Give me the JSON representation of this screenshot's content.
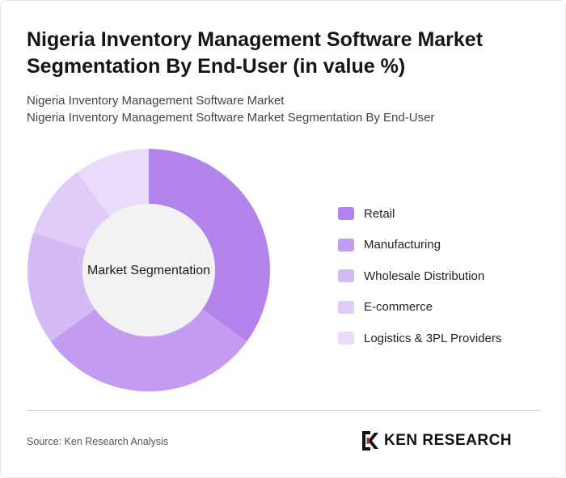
{
  "header": {
    "title": "Nigeria Inventory Management Software Market Segmentation By End-User (in value %)",
    "subtitle_line1": "Nigeria Inventory Management Software Market",
    "subtitle_line2": "Nigeria Inventory Management Software Market Segmentation By End-User"
  },
  "chart_data": {
    "type": "pie",
    "donut": true,
    "center_label": "Market Segmentation",
    "categories": [
      "Retail",
      "Manufacturing",
      "Wholesale Distribution",
      "E-commerce",
      "Logistics & 3PL Providers"
    ],
    "values": [
      35,
      30,
      15,
      10,
      10
    ],
    "colors": [
      "#b383ec",
      "#c39bf0",
      "#d4bbf5",
      "#dfccf7",
      "#e9dcfa"
    ],
    "legend_position": "right"
  },
  "footer": {
    "source": "Source: Ken Research Analysis",
    "logo_text": "KEN RESEARCH"
  }
}
